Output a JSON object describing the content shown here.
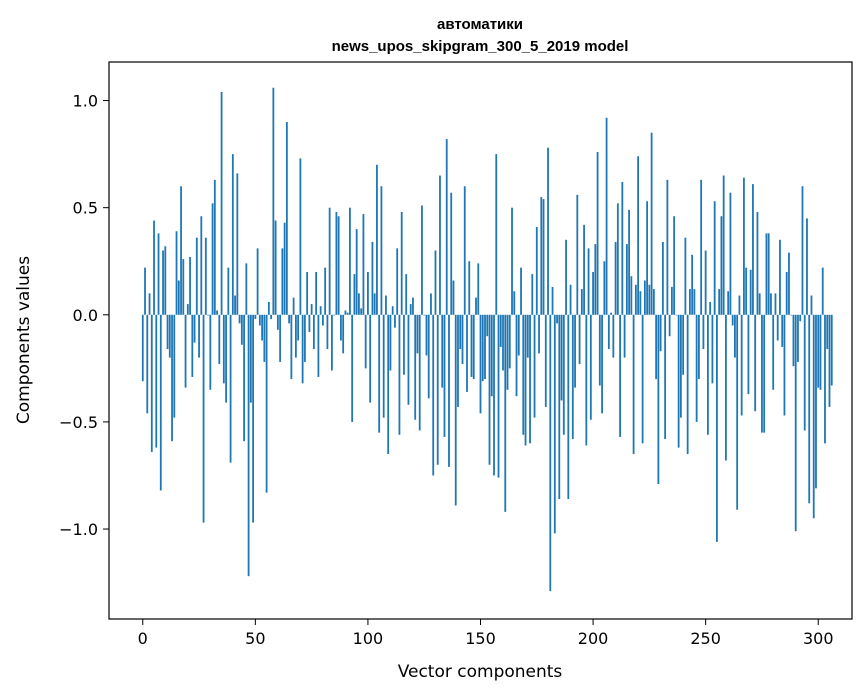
{
  "chart_data": {
    "type": "bar",
    "title_line1": "автоматики",
    "title_line2": "news_upos_skipgram_300_5_2019 model",
    "xlabel": "Vector components",
    "ylabel": "Components values",
    "xlim": [
      -15,
      315
    ],
    "ylim": [
      -1.42,
      1.18
    ],
    "xticks": [
      0,
      50,
      100,
      150,
      200,
      250,
      300
    ],
    "xtick_labels": [
      "0",
      "50",
      "100",
      "150",
      "200",
      "250",
      "300"
    ],
    "yticks": [
      -1.0,
      -0.5,
      0.0,
      0.5,
      1.0
    ],
    "ytick_labels": [
      "−1.0",
      "−0.5",
      "0.0",
      "0.5",
      "1.0"
    ],
    "grid": false,
    "bar_color": "#1f77b4",
    "values": [
      -0.31,
      0.22,
      -0.46,
      0.1,
      -0.64,
      0.44,
      -0.62,
      0.38,
      -0.82,
      0.3,
      0.32,
      -0.16,
      -0.2,
      -0.59,
      -0.48,
      0.39,
      0.16,
      0.6,
      0.26,
      -0.34,
      0.05,
      0.27,
      -0.29,
      -0.13,
      0.36,
      -0.2,
      0.46,
      -0.97,
      0.36,
      0.0,
      -0.35,
      0.52,
      0.63,
      0.02,
      -0.23,
      1.04,
      -0.32,
      -0.41,
      0.22,
      -0.69,
      0.75,
      0.09,
      0.66,
      -0.04,
      -0.14,
      -0.59,
      0.24,
      -1.22,
      -0.41,
      -0.97,
      -0.02,
      0.31,
      -0.05,
      -0.12,
      -0.22,
      -0.83,
      0.06,
      -0.02,
      1.06,
      0.44,
      -0.07,
      -0.22,
      0.31,
      0.43,
      0.9,
      -0.04,
      -0.3,
      0.08,
      -0.2,
      -0.12,
      0.73,
      -0.32,
      -0.22,
      0.2,
      -0.08,
      0.05,
      -0.16,
      0.2,
      -0.29,
      0.04,
      -0.05,
      0.22,
      -0.16,
      0.5,
      -0.26,
      0.0,
      0.48,
      0.46,
      -0.12,
      -0.18,
      0.02,
      0.01,
      0.5,
      -0.5,
      0.19,
      0.4,
      0.1,
      0.03,
      0.47,
      -0.25,
      0.2,
      -0.41,
      0.34,
      0.1,
      0.7,
      -0.55,
      0.6,
      -0.48,
      0.09,
      -0.65,
      -0.26,
      0.04,
      -0.06,
      0.31,
      -0.56,
      0.48,
      -0.28,
      0.19,
      -0.42,
      0.05,
      0.08,
      -0.49,
      -0.18,
      -0.54,
      0.51,
      0.0,
      -0.19,
      -0.39,
      0.1,
      -0.75,
      0.3,
      -0.7,
      0.65,
      -0.34,
      -0.57,
      0.82,
      -0.71,
      0.57,
      0.16,
      -0.89,
      -0.43,
      -0.16,
      -0.23,
      0.6,
      -0.36,
      0.25,
      -0.29,
      -0.3,
      0.08,
      0.24,
      -0.46,
      -0.31,
      -0.3,
      -0.1,
      -0.7,
      -0.38,
      -0.75,
      0.75,
      -0.76,
      -0.15,
      -0.26,
      -0.92,
      -0.35,
      -0.25,
      0.5,
      0.11,
      -0.38,
      -0.19,
      0.22,
      -0.56,
      -0.61,
      -0.2,
      -0.6,
      0.19,
      -0.48,
      0.41,
      -0.18,
      0.55,
      0.54,
      -0.43,
      0.78,
      -1.29,
      0.13,
      -1.02,
      -0.04,
      -0.86,
      -0.4,
      -0.56,
      0.35,
      -0.86,
      0.14,
      -0.58,
      -0.34,
      0.56,
      -0.23,
      0.12,
      0.42,
      -0.61,
      0.31,
      -0.49,
      0.2,
      0.33,
      0.76,
      -0.33,
      -0.46,
      0.25,
      0.92,
      -0.16,
      0.01,
      -0.2,
      0.34,
      0.52,
      -0.57,
      0.62,
      -0.2,
      0.33,
      0.49,
      0.18,
      -0.65,
      0.14,
      0.74,
      0.11,
      -0.6,
      0.16,
      0.53,
      0.14,
      0.85,
      0.12,
      -0.3,
      -0.79,
      -0.17,
      0.34,
      -0.58,
      0.63,
      -0.1,
      0.13,
      0.46,
      0.0,
      -0.62,
      -0.48,
      -0.28,
      0.36,
      -0.65,
      0.12,
      0.28,
      0.12,
      -0.5,
      -0.3,
      0.63,
      -0.16,
      0.3,
      -0.56,
      0.06,
      -0.32,
      0.53,
      -1.06,
      0.12,
      0.46,
      0.65,
      -0.68,
      0.11,
      0.57,
      -0.05,
      -0.2,
      -0.91,
      0.09,
      -0.47,
      0.64,
      0.22,
      -0.37,
      0.21,
      0.61,
      -0.45,
      0.48,
      0.1,
      -0.55,
      -0.55,
      0.38,
      0.38,
      0.1,
      -0.35,
      0.1,
      -0.12,
      0.35,
      -0.15,
      -0.47,
      0.2,
      0.29,
      0.0,
      -0.24,
      -1.01,
      -0.22,
      -0.03,
      0.6,
      -0.54,
      0.45,
      -0.88,
      0.09,
      -0.95,
      -0.81,
      -0.34,
      -0.35,
      0.22,
      -0.6,
      -0.16,
      -0.43,
      -0.33
    ]
  }
}
